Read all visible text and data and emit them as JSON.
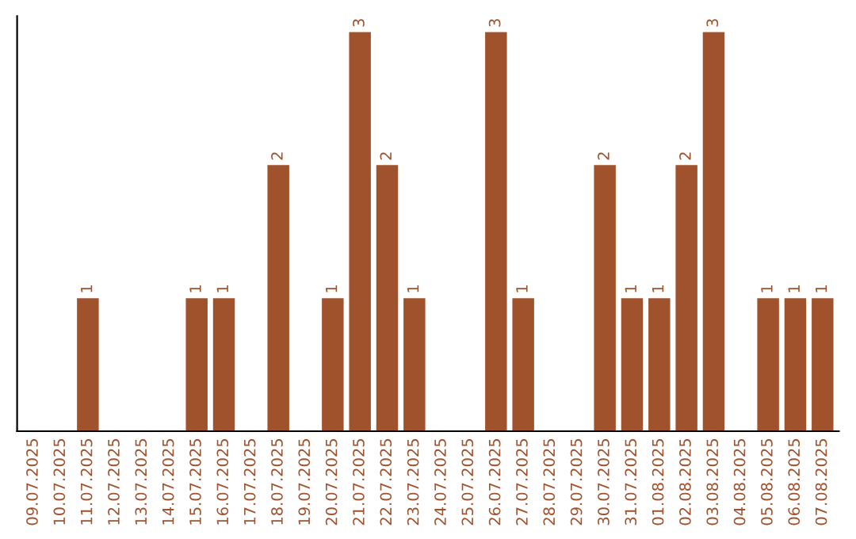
{
  "chart_data": {
    "type": "bar",
    "categories": [
      "09.07.2025",
      "10.07.2025",
      "11.07.2025",
      "12.07.2025",
      "13.07.2025",
      "14.07.2025",
      "15.07.2025",
      "16.07.2025",
      "17.07.2025",
      "18.07.2025",
      "19.07.2025",
      "20.07.2025",
      "21.07.2025",
      "22.07.2025",
      "23.07.2025",
      "24.07.2025",
      "25.07.2025",
      "26.07.2025",
      "27.07.2025",
      "28.07.2025",
      "29.07.2025",
      "30.07.2025",
      "31.07.2025",
      "01.08.2025",
      "02.08.2025",
      "03.08.2025",
      "04.08.2025",
      "05.08.2025",
      "06.08.2025",
      "07.08.2025"
    ],
    "values": [
      null,
      null,
      1,
      null,
      null,
      null,
      1,
      1,
      null,
      2,
      null,
      1,
      3,
      2,
      1,
      null,
      null,
      3,
      1,
      null,
      null,
      2,
      1,
      1,
      2,
      3,
      null,
      1,
      1,
      1
    ],
    "value_labels": [
      null,
      null,
      "1",
      null,
      null,
      null,
      "1",
      "1",
      null,
      "2",
      null,
      "1",
      "3",
      "2",
      "1",
      null,
      null,
      "3",
      "1",
      null,
      null,
      "2",
      "1",
      "1",
      "2",
      "3",
      null,
      "1",
      "1",
      "1"
    ],
    "color": "#a0522d",
    "tick_labels": "x",
    "grid": false,
    "legend": false
  }
}
